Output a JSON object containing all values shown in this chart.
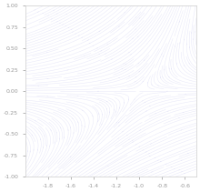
{
  "title": "",
  "xlim": [
    -2.0,
    -0.5
  ],
  "ylim": [
    -1.0,
    1.0
  ],
  "xticks": [
    -1.8,
    -1.6,
    -1.4,
    -1.2,
    -1.0,
    -0.8,
    -0.6
  ],
  "yticks": [
    -1.0,
    -0.75,
    -0.5,
    -0.25,
    0.0,
    0.25,
    0.5,
    0.75,
    1.0
  ],
  "background_color": "#ffffff",
  "stream_color": "#8888dd",
  "stream_alpha": 0.18,
  "linewidth": 0.4,
  "density": 2.5,
  "figsize": [
    2.2,
    2.11
  ],
  "dpi": 100,
  "ytick_labels": [
    "-1.00",
    "-0.75",
    "-0.50",
    "-0.25",
    "0.00",
    "0.25",
    "0.50",
    "0.75",
    "1.00"
  ],
  "xtick_labels": [
    "-1.8",
    "-1.6",
    "-1.4",
    "-1.2",
    "-1.0",
    "-0.8",
    "-0.6"
  ]
}
